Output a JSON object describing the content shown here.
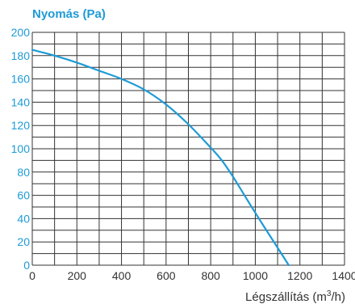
{
  "chart_data": {
    "type": "line",
    "title": "",
    "ylabel": "Nyomás (Pa)",
    "xlabel_text": "Légszállítás (m",
    "xlabel_sup": "3",
    "xlabel_tail": "/h)",
    "xlim": [
      0,
      1400
    ],
    "ylim": [
      0,
      200
    ],
    "x_ticks": [
      "0",
      "200",
      "400",
      "600",
      "800",
      "1000",
      "1200",
      "1400"
    ],
    "y_ticks": [
      "0",
      "20",
      "40",
      "60",
      "80",
      "100",
      "120",
      "140",
      "160",
      "180",
      "200"
    ],
    "grid": true,
    "series": [
      {
        "x": [
          0,
          100,
          200,
          300,
          400,
          500,
          600,
          700,
          800,
          850,
          900,
          1000,
          1100,
          1150
        ],
        "y": [
          185,
          180,
          174,
          167,
          160,
          151,
          138,
          121,
          101,
          90,
          76,
          45,
          15,
          0
        ]
      }
    ]
  },
  "colors": {
    "line": "#1e9bd6",
    "ytick": "#1e9bd6",
    "xtick": "#333333",
    "grid": "#333333"
  }
}
